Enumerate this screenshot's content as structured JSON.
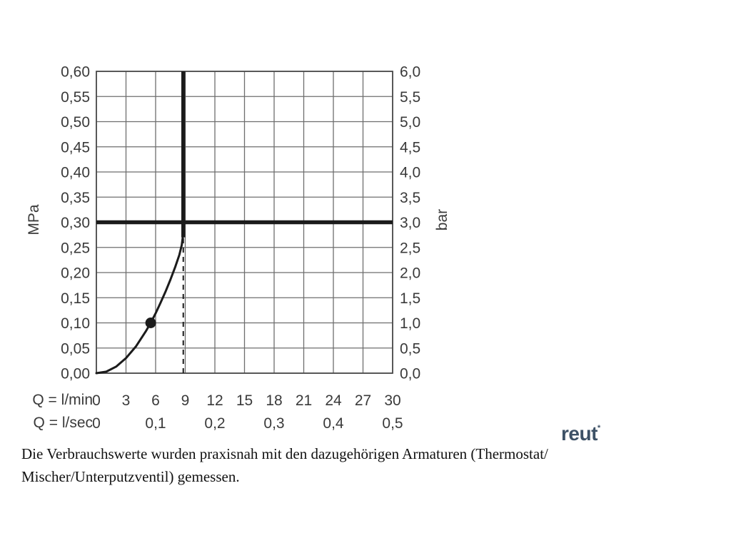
{
  "chart_data": {
    "type": "line",
    "title": "",
    "grid": true,
    "colors": {
      "grid": "#6e6e6e",
      "frame": "#4a4a4a",
      "curve": "#1b1b1b",
      "text": "#3a3a3a",
      "logo": "#3d5166"
    },
    "x_axis": {
      "min": 0,
      "max": 30,
      "step": 3,
      "ticks_lmin": [
        "0",
        "3",
        "6",
        "9",
        "12",
        "15",
        "18",
        "21",
        "24",
        "27",
        "30"
      ],
      "ticks_lsec": [
        {
          "label": "0",
          "at": 0
        },
        {
          "label": "0,1",
          "at": 6
        },
        {
          "label": "0,2",
          "at": 12
        },
        {
          "label": "0,3",
          "at": 18
        },
        {
          "label": "0,4",
          "at": 24
        },
        {
          "label": "0,5",
          "at": 30
        }
      ]
    },
    "y_left": {
      "label": "MPa",
      "min": 0,
      "max": 0.6,
      "step": 0.05,
      "ticks": [
        "0,60",
        "0,55",
        "0,50",
        "0,45",
        "0,40",
        "0,35",
        "0,30",
        "0,25",
        "0,20",
        "0,15",
        "0,10",
        "0,05",
        "0,00"
      ]
    },
    "y_right": {
      "label": "bar",
      "min": 0,
      "max": 6.0,
      "step": 0.5,
      "ticks": [
        "6,0",
        "5,5",
        "5,0",
        "4,5",
        "4,0",
        "3,5",
        "3,0",
        "2,5",
        "2,0",
        "1,5",
        "1,0",
        "0,5",
        "0,0"
      ]
    },
    "curve": {
      "points": [
        [
          0,
          0
        ],
        [
          1,
          0.003
        ],
        [
          2,
          0.013
        ],
        [
          3,
          0.03
        ],
        [
          4,
          0.053
        ],
        [
          5,
          0.083
        ],
        [
          5.5,
          0.1
        ],
        [
          6,
          0.119
        ],
        [
          6.5,
          0.14
        ],
        [
          7,
          0.162
        ],
        [
          7.5,
          0.186
        ],
        [
          8,
          0.212
        ],
        [
          8.4,
          0.235
        ],
        [
          8.65,
          0.255
        ],
        [
          8.78,
          0.275
        ],
        [
          8.8,
          0.3
        ]
      ],
      "vertical_x": 8.8,
      "vertical_from": 0.27,
      "vertical_to": 0.6
    },
    "marker_point": {
      "x": 5.5,
      "y": 0.1
    },
    "reference_line_y": 0.3,
    "dashed_line_x": 8.8
  },
  "axis_rows": {
    "lmin_label": "Q = l/min",
    "lsec_label": "Q = l/sec"
  },
  "logo": {
    "text": "reut",
    "mark": "*"
  },
  "caption": {
    "line1": "Die Verbrauchswerte wurden praxisnah mit den dazugehörigen Armaturen (Thermostat/",
    "line2": "Mischer/Unterputzventil) gemessen."
  }
}
